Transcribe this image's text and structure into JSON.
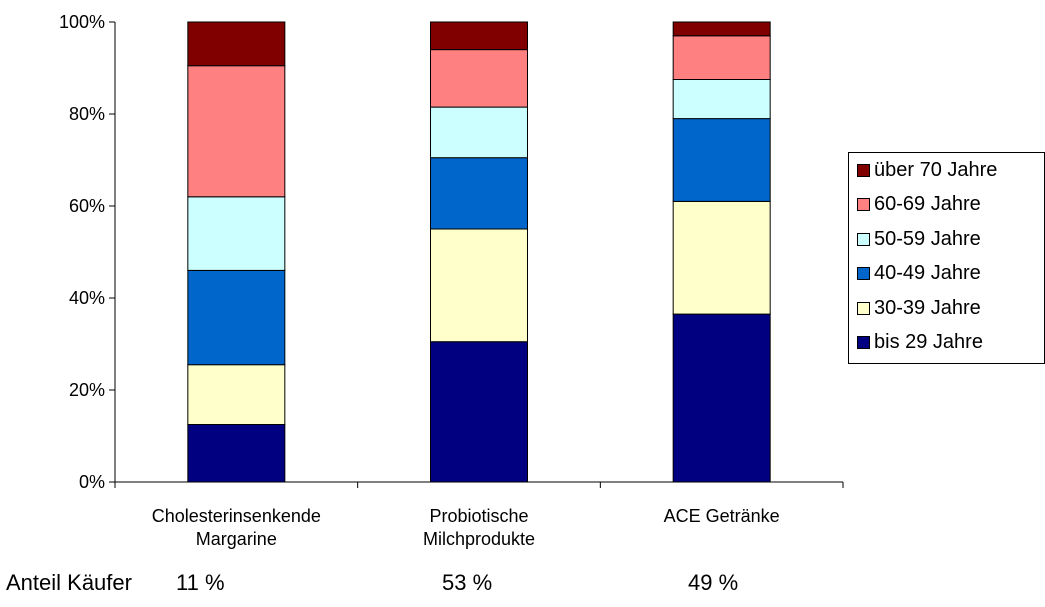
{
  "chart_data": {
    "type": "bar",
    "stacked": true,
    "normalized": true,
    "categories": [
      [
        "Cholesterinsenkende",
        "Margarine"
      ],
      [
        "Probiotische",
        "Milchprodukte"
      ],
      [
        "ACE Getränke"
      ]
    ],
    "series": [
      {
        "name": "bis 29 Jahre",
        "color": "#000080",
        "values": [
          12.5,
          30.5,
          36.5
        ]
      },
      {
        "name": "30-39 Jahre",
        "color": "#FFFFCC",
        "values": [
          13.0,
          24.5,
          24.5
        ]
      },
      {
        "name": "40-49 Jahre",
        "color": "#0066CC",
        "values": [
          20.5,
          15.5,
          18.0
        ]
      },
      {
        "name": "50-59 Jahre",
        "color": "#CCFFFF",
        "values": [
          16.0,
          11.0,
          8.5
        ]
      },
      {
        "name": "60-69 Jahre",
        "color": "#FF8080",
        "values": [
          28.5,
          12.5,
          9.5
        ]
      },
      {
        "name": "über 70 Jahre",
        "color": "#800000",
        "values": [
          9.5,
          6.0,
          3.0
        ]
      }
    ],
    "ylim": [
      0,
      100
    ],
    "yticks": [
      "0%",
      "20%",
      "40%",
      "60%",
      "80%",
      "100%"
    ],
    "legend_position": "right",
    "grid": false
  },
  "footer": {
    "label": "Anteil Käufer",
    "values": [
      "11 %",
      "53 %",
      "49 %"
    ]
  }
}
